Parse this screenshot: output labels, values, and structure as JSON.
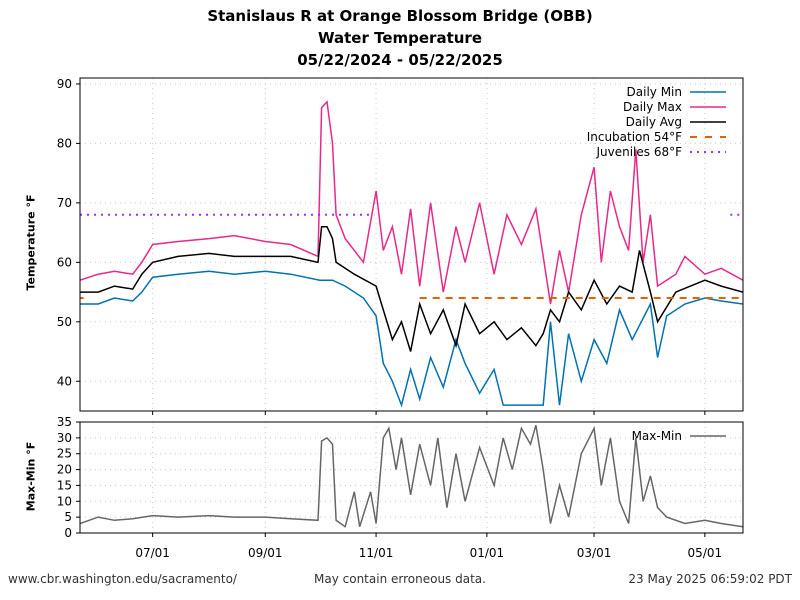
{
  "titles": {
    "line1": "Stanislaus R at Orange Blossom Bridge (OBB)",
    "line2": "Water Temperature",
    "line3": "05/22/2024 - 05/22/2025"
  },
  "footer": {
    "left": "www.cbr.washington.edu/sacramento/",
    "middle": "May contain erroneous data.",
    "right": "23 May 2025 06:59:02 PDT"
  },
  "chart_data": [
    {
      "type": "line",
      "ylabel": "Temperature °F",
      "ylim": [
        35,
        91
      ],
      "yticks": [
        40,
        50,
        60,
        70,
        80,
        90
      ],
      "xlim": [
        "2024-05-22",
        "2025-05-22"
      ],
      "xticks": [
        {
          "date": "2024-07-01",
          "label": "07/01"
        },
        {
          "date": "2024-09-01",
          "label": "09/01"
        },
        {
          "date": "2024-11-01",
          "label": "11/01"
        },
        {
          "date": "2025-01-01",
          "label": "01/01"
        },
        {
          "date": "2025-03-01",
          "label": "03/01"
        },
        {
          "date": "2025-05-01",
          "label": "05/01"
        }
      ],
      "grid": true,
      "legend": "top-right",
      "series": [
        {
          "name": "Daily Min",
          "color": "#0072b2",
          "points": [
            [
              "2024-05-22",
              53
            ],
            [
              "2024-06-01",
              53
            ],
            [
              "2024-06-10",
              54
            ],
            [
              "2024-06-20",
              53.5
            ],
            [
              "2024-06-25",
              55
            ],
            [
              "2024-07-01",
              57.5
            ],
            [
              "2024-07-15",
              58
            ],
            [
              "2024-08-01",
              58.5
            ],
            [
              "2024-08-15",
              58
            ],
            [
              "2024-09-01",
              58.5
            ],
            [
              "2024-09-15",
              58
            ],
            [
              "2024-10-01",
              57
            ],
            [
              "2024-10-08",
              57
            ],
            [
              "2024-10-15",
              56
            ],
            [
              "2024-10-25",
              54
            ],
            [
              "2024-11-01",
              51
            ],
            [
              "2024-11-05",
              43
            ],
            [
              "2024-11-10",
              40
            ],
            [
              "2024-11-15",
              36
            ],
            [
              "2024-11-20",
              42
            ],
            [
              "2024-11-25",
              37
            ],
            [
              "2024-12-01",
              44
            ],
            [
              "2024-12-08",
              39
            ],
            [
              "2024-12-15",
              47
            ],
            [
              "2024-12-20",
              43
            ],
            [
              "2024-12-28",
              38
            ],
            [
              "2025-01-05",
              42
            ],
            [
              "2025-01-10",
              36
            ],
            [
              "2025-01-15",
              36
            ],
            [
              "2025-01-25",
              36
            ],
            [
              "2025-02-01",
              36
            ],
            [
              "2025-02-05",
              50
            ],
            [
              "2025-02-10",
              36
            ],
            [
              "2025-02-15",
              48
            ],
            [
              "2025-02-22",
              40
            ],
            [
              "2025-03-01",
              47
            ],
            [
              "2025-03-08",
              43
            ],
            [
              "2025-03-15",
              52
            ],
            [
              "2025-03-22",
              47
            ],
            [
              "2025-04-01",
              53
            ],
            [
              "2025-04-05",
              44
            ],
            [
              "2025-04-10",
              51
            ],
            [
              "2025-04-20",
              53
            ],
            [
              "2025-05-01",
              54
            ],
            [
              "2025-05-10",
              53.5
            ],
            [
              "2025-05-22",
              53
            ]
          ]
        },
        {
          "name": "Daily Max",
          "color": "#e7298a",
          "points": [
            [
              "2024-05-22",
              57
            ],
            [
              "2024-06-01",
              58
            ],
            [
              "2024-06-10",
              58.5
            ],
            [
              "2024-06-20",
              58
            ],
            [
              "2024-06-25",
              60
            ],
            [
              "2024-07-01",
              63
            ],
            [
              "2024-07-15",
              63.5
            ],
            [
              "2024-08-01",
              64
            ],
            [
              "2024-08-15",
              64.5
            ],
            [
              "2024-09-01",
              63.5
            ],
            [
              "2024-09-15",
              63
            ],
            [
              "2024-09-30",
              61
            ],
            [
              "2024-10-02",
              86
            ],
            [
              "2024-10-05",
              87
            ],
            [
              "2024-10-08",
              80
            ],
            [
              "2024-10-10",
              68
            ],
            [
              "2024-10-15",
              64
            ],
            [
              "2024-10-25",
              60
            ],
            [
              "2024-11-01",
              72
            ],
            [
              "2024-11-05",
              62
            ],
            [
              "2024-11-10",
              66
            ],
            [
              "2024-11-15",
              58
            ],
            [
              "2024-11-20",
              69
            ],
            [
              "2024-11-25",
              56
            ],
            [
              "2024-12-01",
              70
            ],
            [
              "2024-12-08",
              55
            ],
            [
              "2024-12-15",
              66
            ],
            [
              "2024-12-20",
              60
            ],
            [
              "2024-12-28",
              70
            ],
            [
              "2025-01-05",
              58
            ],
            [
              "2025-01-12",
              68
            ],
            [
              "2025-01-20",
              63
            ],
            [
              "2025-01-28",
              69
            ],
            [
              "2025-02-05",
              53
            ],
            [
              "2025-02-10",
              62
            ],
            [
              "2025-02-15",
              55
            ],
            [
              "2025-02-22",
              68
            ],
            [
              "2025-03-01",
              76
            ],
            [
              "2025-03-05",
              60
            ],
            [
              "2025-03-10",
              72
            ],
            [
              "2025-03-15",
              66
            ],
            [
              "2025-03-20",
              62
            ],
            [
              "2025-03-24",
              79
            ],
            [
              "2025-03-28",
              60
            ],
            [
              "2025-04-01",
              68
            ],
            [
              "2025-04-05",
              56
            ],
            [
              "2025-04-15",
              58
            ],
            [
              "2025-04-20",
              61
            ],
            [
              "2025-05-01",
              58
            ],
            [
              "2025-05-10",
              59
            ],
            [
              "2025-05-22",
              57
            ]
          ]
        },
        {
          "name": "Daily Avg",
          "color": "#000000",
          "points": [
            [
              "2024-05-22",
              55
            ],
            [
              "2024-06-01",
              55
            ],
            [
              "2024-06-10",
              56
            ],
            [
              "2024-06-20",
              55.5
            ],
            [
              "2024-06-25",
              58
            ],
            [
              "2024-07-01",
              60
            ],
            [
              "2024-07-15",
              61
            ],
            [
              "2024-08-01",
              61.5
            ],
            [
              "2024-08-15",
              61
            ],
            [
              "2024-09-01",
              61
            ],
            [
              "2024-09-15",
              61
            ],
            [
              "2024-09-30",
              60
            ],
            [
              "2024-10-02",
              66
            ],
            [
              "2024-10-05",
              66
            ],
            [
              "2024-10-08",
              64
            ],
            [
              "2024-10-10",
              60
            ],
            [
              "2024-10-20",
              58
            ],
            [
              "2024-11-01",
              56
            ],
            [
              "2024-11-05",
              52
            ],
            [
              "2024-11-10",
              47
            ],
            [
              "2024-11-15",
              50
            ],
            [
              "2024-11-20",
              45
            ],
            [
              "2024-11-25",
              53
            ],
            [
              "2024-12-01",
              48
            ],
            [
              "2024-12-08",
              52
            ],
            [
              "2024-12-15",
              46
            ],
            [
              "2024-12-20",
              53
            ],
            [
              "2024-12-28",
              48
            ],
            [
              "2025-01-05",
              50
            ],
            [
              "2025-01-12",
              47
            ],
            [
              "2025-01-20",
              49
            ],
            [
              "2025-01-28",
              46
            ],
            [
              "2025-02-01",
              48
            ],
            [
              "2025-02-05",
              52
            ],
            [
              "2025-02-10",
              50
            ],
            [
              "2025-02-15",
              55
            ],
            [
              "2025-02-22",
              52
            ],
            [
              "2025-03-01",
              57
            ],
            [
              "2025-03-08",
              53
            ],
            [
              "2025-03-15",
              56
            ],
            [
              "2025-03-22",
              55
            ],
            [
              "2025-03-26",
              62
            ],
            [
              "2025-04-01",
              55
            ],
            [
              "2025-04-05",
              50
            ],
            [
              "2025-04-15",
              55
            ],
            [
              "2025-05-01",
              57
            ],
            [
              "2025-05-10",
              56
            ],
            [
              "2025-05-22",
              55
            ]
          ]
        },
        {
          "name": "Incubation 54°F",
          "color": "#e66100",
          "dash": "dashed",
          "value": 54,
          "segments": [
            [
              "2024-05-22",
              "2024-05-24"
            ],
            [
              "2024-11-25",
              "2025-05-22"
            ]
          ]
        },
        {
          "name": "Juveniles 68°F",
          "color": "#9b30ff",
          "dash": "dotted",
          "value": 68,
          "segments": [
            [
              "2024-05-22",
              "2024-10-31"
            ],
            [
              "2025-05-15",
              "2025-05-22"
            ]
          ]
        }
      ]
    },
    {
      "type": "line",
      "ylabel": "Max-Min °F",
      "ylim": [
        0,
        35
      ],
      "yticks": [
        0,
        5,
        10,
        15,
        20,
        25,
        30,
        35
      ],
      "grid": true,
      "legend": "top-right",
      "series": [
        {
          "name": "Max-Min",
          "color": "#666666",
          "points": [
            [
              "2024-05-22",
              3
            ],
            [
              "2024-06-01",
              5
            ],
            [
              "2024-06-10",
              4
            ],
            [
              "2024-06-20",
              4.5
            ],
            [
              "2024-07-01",
              5.5
            ],
            [
              "2024-07-15",
              5
            ],
            [
              "2024-08-01",
              5.5
            ],
            [
              "2024-08-15",
              5
            ],
            [
              "2024-09-01",
              5
            ],
            [
              "2024-09-15",
              4.5
            ],
            [
              "2024-09-30",
              4
            ],
            [
              "2024-10-02",
              29
            ],
            [
              "2024-10-05",
              30
            ],
            [
              "2024-10-08",
              28
            ],
            [
              "2024-10-10",
              4
            ],
            [
              "2024-10-15",
              2
            ],
            [
              "2024-10-20",
              13
            ],
            [
              "2024-10-23",
              2
            ],
            [
              "2024-10-29",
              13
            ],
            [
              "2024-11-01",
              3
            ],
            [
              "2024-11-05",
              30
            ],
            [
              "2024-11-08",
              33
            ],
            [
              "2024-11-12",
              20
            ],
            [
              "2024-11-15",
              30
            ],
            [
              "2024-11-20",
              12
            ],
            [
              "2024-11-25",
              28
            ],
            [
              "2024-12-01",
              15
            ],
            [
              "2024-12-05",
              30
            ],
            [
              "2024-12-10",
              8
            ],
            [
              "2024-12-15",
              25
            ],
            [
              "2024-12-20",
              10
            ],
            [
              "2024-12-28",
              27
            ],
            [
              "2025-01-05",
              15
            ],
            [
              "2025-01-10",
              30
            ],
            [
              "2025-01-15",
              20
            ],
            [
              "2025-01-20",
              33
            ],
            [
              "2025-01-25",
              28
            ],
            [
              "2025-01-28",
              34
            ],
            [
              "2025-02-01",
              20
            ],
            [
              "2025-02-05",
              3
            ],
            [
              "2025-02-10",
              15
            ],
            [
              "2025-02-15",
              5
            ],
            [
              "2025-02-22",
              25
            ],
            [
              "2025-03-01",
              33
            ],
            [
              "2025-03-05",
              15
            ],
            [
              "2025-03-10",
              30
            ],
            [
              "2025-03-15",
              10
            ],
            [
              "2025-03-20",
              3
            ],
            [
              "2025-03-24",
              30
            ],
            [
              "2025-03-28",
              10
            ],
            [
              "2025-04-01",
              18
            ],
            [
              "2025-04-05",
              8
            ],
            [
              "2025-04-10",
              5
            ],
            [
              "2025-04-20",
              3
            ],
            [
              "2025-05-01",
              4
            ],
            [
              "2025-05-10",
              3
            ],
            [
              "2025-05-22",
              2
            ]
          ]
        }
      ]
    }
  ]
}
